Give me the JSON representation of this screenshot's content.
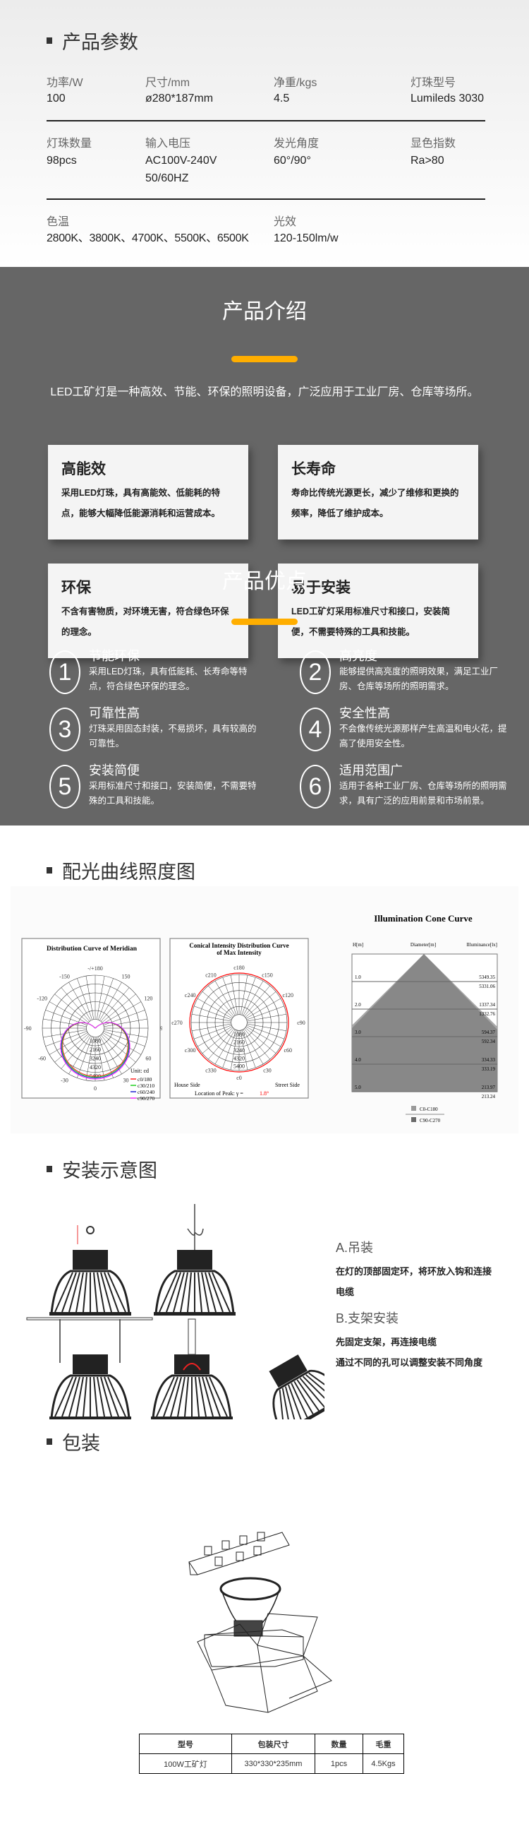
{
  "spec": {
    "title": "产品参数",
    "rows": [
      [
        {
          "label": "功率/W",
          "value": "100"
        },
        {
          "label": "尺寸/mm",
          "value": "ø280*187mm"
        },
        {
          "label": "净重/kgs",
          "value": "4.5"
        },
        {
          "label": "灯珠型号",
          "value": "Lumileds 3030"
        }
      ],
      [
        {
          "label": "灯珠数量",
          "value": "98pcs"
        },
        {
          "label": "输入电压",
          "value": "AC100V-240V",
          "value2": "50/60HZ"
        },
        {
          "label": "发光角度",
          "value": "60°/90°"
        },
        {
          "label": "显色指数",
          "value": "Ra>80"
        }
      ],
      [
        {
          "label": "色温",
          "value": "2800K、3800K、4700K、5500K、6500K"
        },
        {
          "label": "光效",
          "value": "120-150lm/w"
        }
      ]
    ]
  },
  "intro": {
    "title": "产品介绍",
    "text": "LED工矿灯是一种高效、节能、环保的照明设备，广泛应用于工业厂房、仓库等场所。",
    "accent": "#ffae00",
    "cards": [
      {
        "title": "高能效",
        "text": "采用LED灯珠，具有高能效、低能耗的特点，能够大幅降低能源消耗和运营成本。"
      },
      {
        "title": "长寿命",
        "text": "寿命比传统光源更长，减少了维修和更换的频率，降低了维护成本。"
      },
      {
        "title": "环保",
        "text": "不含有害物质，对环境无害，符合绿色环保的理念。"
      },
      {
        "title": "易于安装",
        "text": "LED工矿灯采用标准尺寸和接口，安装简便，不需要特殊的工具和技能。"
      }
    ]
  },
  "advantages": {
    "title": "产品优点",
    "items": [
      {
        "num": "1",
        "title": "节能环保",
        "text": "采用LED灯珠，具有低能耗、长寿命等特点，符合绿色环保的理念。"
      },
      {
        "num": "2",
        "title": "高亮度",
        "text": "能够提供高亮度的照明效果，满足工业厂房、仓库等场所的照明需求。"
      },
      {
        "num": "3",
        "title": "可靠性高",
        "text": "灯珠采用固态封装，不易损坏，具有较高的可靠性。"
      },
      {
        "num": "4",
        "title": "安全性高",
        "text": "不会像传统光源那样产生高温和电火花，提高了使用安全性。"
      },
      {
        "num": "5",
        "title": "安装简便",
        "text": "采用标准尺寸和接口，安装简便，不需要特殊的工具和技能。"
      },
      {
        "num": "6",
        "title": "适用范围广",
        "text": "适用于各种工业厂房、仓库等场所的照明需求，具有广泛的应用前景和市场前景。"
      }
    ]
  },
  "photometric": {
    "title": "配光曲线照度图",
    "meridian": {
      "title": "Distribution Curve of  Meridian",
      "angles": [
        "-/+180",
        "150",
        "120",
        "90",
        "60",
        "30",
        "0",
        "-30",
        "-60",
        "-90",
        "-120",
        "-150"
      ],
      "rings": [
        "1080",
        "2160",
        "3240",
        "4320",
        "5400"
      ],
      "unit": "Unit: cd",
      "legend": [
        {
          "name": "c0/180",
          "color": "#ff2020"
        },
        {
          "name": "c30/210",
          "color": "#20d020"
        },
        {
          "name": "c60/240",
          "color": "#2020d0"
        },
        {
          "name": "c90/270",
          "color": "#ff30ff"
        }
      ]
    },
    "conical": {
      "title": "Conical Intensity Distribution Curve",
      "title2": "of  Max Intensity",
      "angles": [
        "c180",
        "c150",
        "c120",
        "c90",
        "c60",
        "c30",
        "c0",
        "c330",
        "c300",
        "c270",
        "c240",
        "c210"
      ],
      "rings": [
        "1080",
        "2160",
        "3240",
        "4320",
        "5400"
      ],
      "house": "House Side",
      "street": "Street Side",
      "peak_label": "Location of Peak:  γ  =",
      "peak_value": "1.8°"
    },
    "cone": {
      "title": "Illumination Cone Curve",
      "h_label": "H[m]",
      "d_label": "Diameter[m]",
      "e_label": "Illuminance[lx]",
      "rows": [
        {
          "h": "1.0",
          "e1": "5349.35",
          "e2": "5331.06"
        },
        {
          "h": "2.0",
          "e1": "1337.34",
          "e2": "1332.76"
        },
        {
          "h": "3.0",
          "e1": "594.37",
          "e2": "592.34"
        },
        {
          "h": "4.0",
          "e1": "334.33",
          "e2": "333.19"
        },
        {
          "h": "5.0",
          "e1": "213.97",
          "e2": "213.24"
        }
      ],
      "legend": [
        {
          "name": "C0-C180",
          "color": "#9a9a9a"
        },
        {
          "name": "C90-C270",
          "color": "#6a6a6a"
        }
      ]
    }
  },
  "install": {
    "title": "安装示意图",
    "a_title": "A.吊装",
    "a_text": "在灯的顶部固定环，将环放入钩和连接电缆",
    "b_title": "B.支架安装",
    "b_text1": "先固定支架，再连接电缆",
    "b_text2": "通过不同的孔可以调整安装不同角度"
  },
  "packing": {
    "title": "包装",
    "headers": [
      "型号",
      "包装尺寸",
      "数量",
      "毛重"
    ],
    "row": [
      "100W工矿灯",
      "330*330*235mm",
      "1pcs",
      "4.5Kgs"
    ]
  }
}
